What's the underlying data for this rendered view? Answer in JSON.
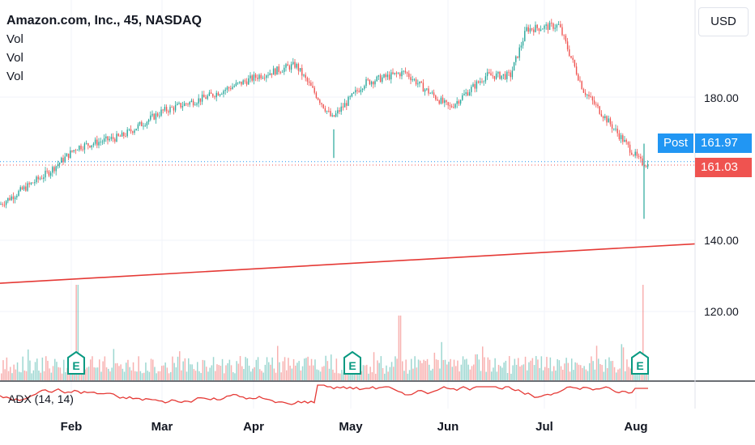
{
  "header": {
    "title": "Amazon.com, Inc., 45, NASDAQ",
    "indicators": [
      "Vol",
      "Vol",
      "Vol"
    ]
  },
  "toolbar": {
    "currency": "USD"
  },
  "adx_label": "ADX (14, 14)",
  "tags": {
    "post_label": "Post",
    "post_price": "161.97",
    "last_price": "161.03"
  },
  "colors": {
    "up": "#26a69a",
    "down": "#ef5350",
    "post_tag": "#2196f3",
    "last_tag": "#ef5350",
    "trendline": "#e53935",
    "adx_line": "#e53935",
    "earnings": "#089981",
    "grid": "#f0f3fa"
  },
  "icons": {
    "earnings": "earnings-e-icon"
  },
  "chart_data": {
    "type": "candlestick",
    "title": "Amazon.com, Inc., 45, NASDAQ",
    "interval": "45",
    "exchange": "NASDAQ",
    "currency": "USD",
    "x_labels": [
      "Feb",
      "Mar",
      "Apr",
      "May",
      "Jun",
      "Jul",
      "Aug"
    ],
    "y_ticks": [
      "180.00",
      "140.00",
      "120.00"
    ],
    "grid": true,
    "price_path": [
      [
        "start",
        150
      ],
      [
        "late Jan",
        159
      ],
      [
        "Feb",
        166
      ],
      [
        "mid Feb",
        169
      ],
      [
        "early Mar",
        176
      ],
      [
        "late Mar",
        180
      ],
      [
        "early Apr",
        186
      ],
      [
        "mid Apr",
        189
      ],
      [
        "late Apr",
        174
      ],
      [
        "May",
        184
      ],
      [
        "mid May",
        187
      ],
      [
        "late May",
        183
      ],
      [
        "early Jun",
        177
      ],
      [
        "mid Jun",
        186
      ],
      [
        "late Jun",
        186
      ],
      [
        "early Jul",
        199
      ],
      [
        "mid Jul",
        200
      ],
      [
        "late Jul",
        182
      ],
      [
        "early Aug",
        162
      ],
      [
        "last",
        161
      ]
    ],
    "post_market": 161.97,
    "last_price": 161.03,
    "trendline": {
      "start": 128,
      "end": 139
    },
    "earnings_markers": [
      "Feb",
      "May",
      "Aug"
    ],
    "volume_panel": true,
    "adx": {
      "label": "ADX (14, 14)"
    }
  }
}
